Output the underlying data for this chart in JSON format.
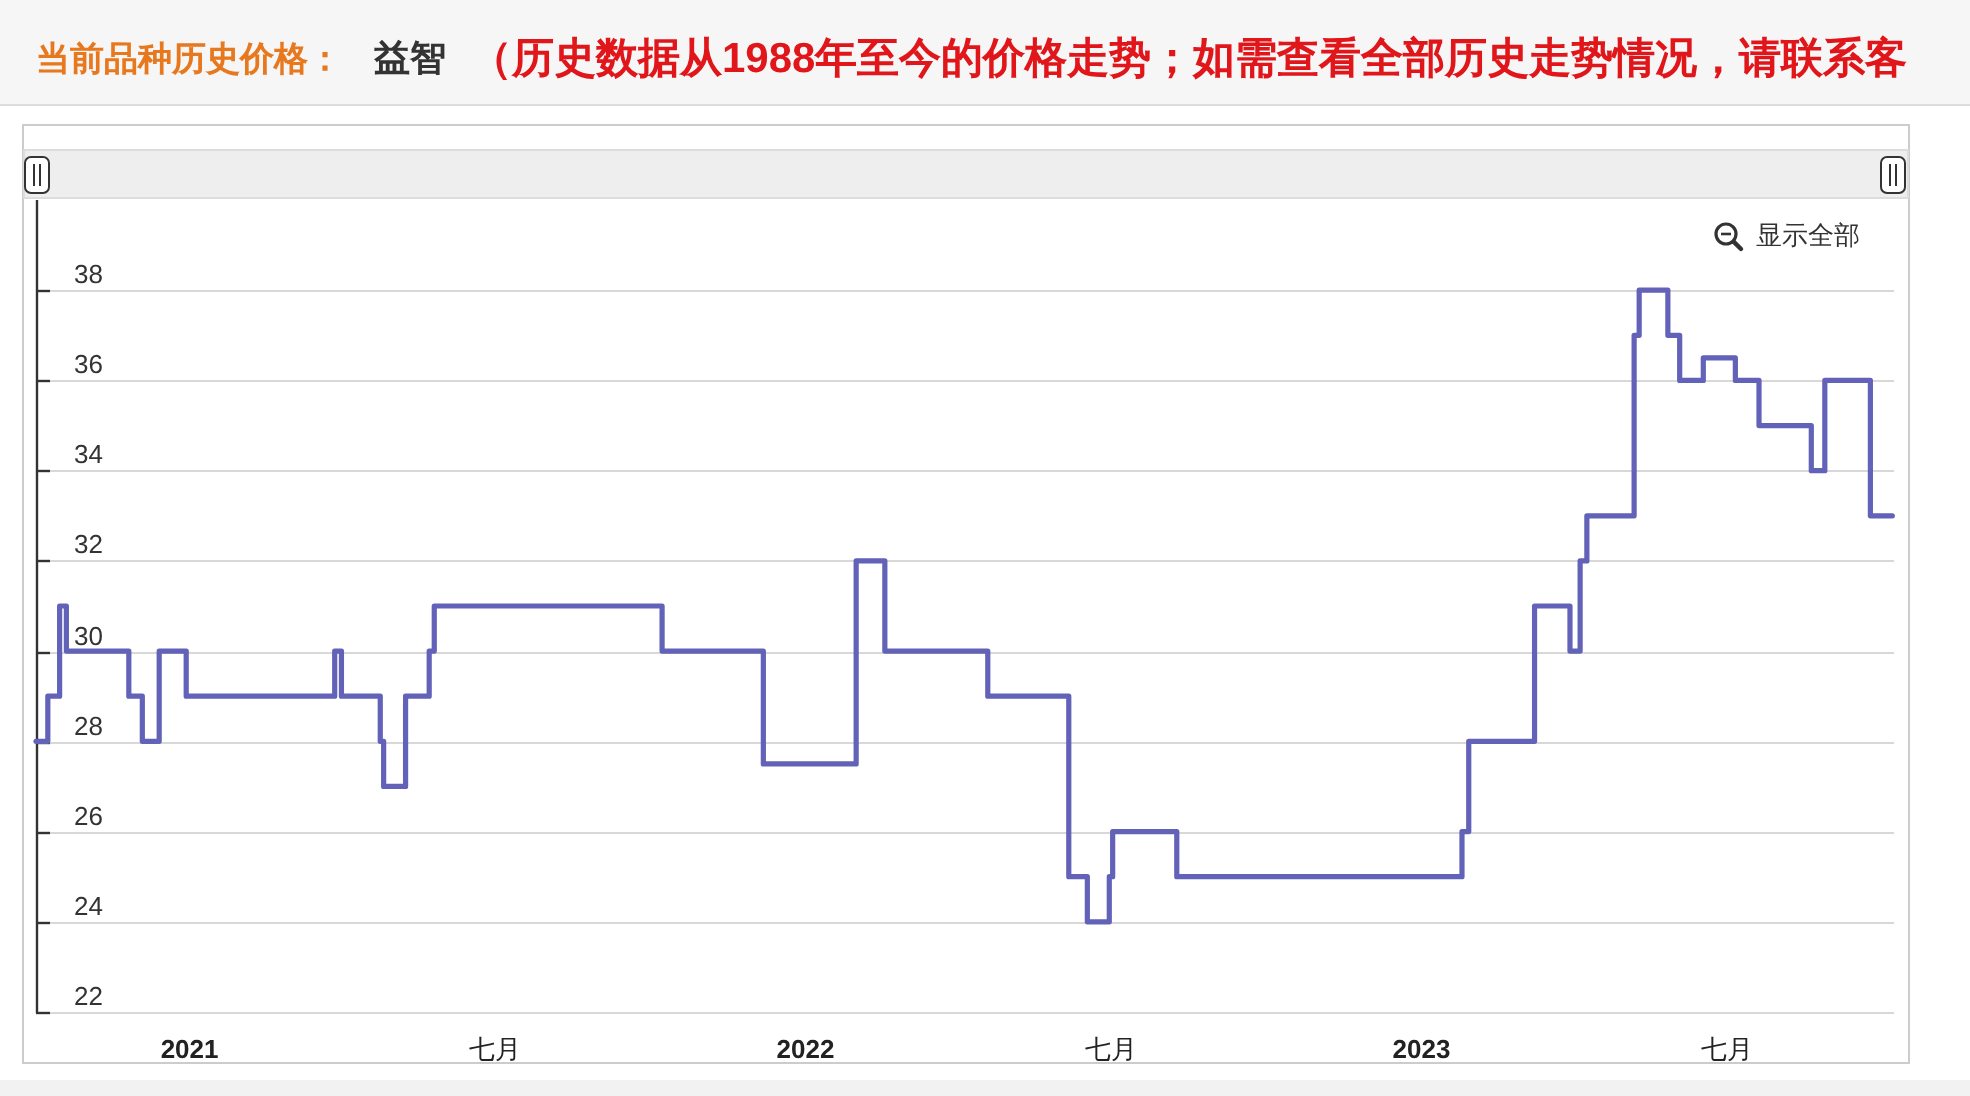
{
  "chart_data": {
    "type": "step",
    "title": "当前品种历史价格：",
    "subtitle": "益智",
    "annotations": [
      "（历史数据从1988年至今的价格走势；如需查看全部历史走势情况，请联系客",
      "显示全部"
    ],
    "x": [
      "2020-10-02",
      "2020-10-09",
      "2020-10-16",
      "2020-10-20",
      "2020-11-26",
      "2020-12-04",
      "2020-12-14",
      "2020-12-30",
      "2021-03-28",
      "2021-04-01",
      "2021-04-24",
      "2021-04-26",
      "2021-05-09",
      "2021-05-23",
      "2021-05-26",
      "2021-10-08",
      "2021-12-07",
      "2022-01-31",
      "2022-02-17",
      "2022-04-19",
      "2022-06-06",
      "2022-06-17",
      "2022-06-30",
      "2022-07-02",
      "2022-08-09",
      "2023-01-25",
      "2023-01-29",
      "2023-03-09",
      "2023-03-30",
      "2023-04-05",
      "2023-04-09",
      "2023-05-07",
      "2023-05-10",
      "2023-05-27",
      "2023-06-03",
      "2023-06-17",
      "2023-07-06",
      "2023-07-20",
      "2023-08-20",
      "2023-08-28",
      "2023-09-24",
      "2023-10-07"
    ],
    "series": [
      {
        "color": "#6262b8",
        "values": [
          28,
          29,
          31,
          30,
          29,
          28,
          30,
          29,
          30,
          29,
          28,
          27,
          29,
          30,
          31,
          30,
          27.5,
          32,
          30,
          29,
          25,
          24,
          25,
          26,
          25,
          26,
          28,
          31,
          30,
          32,
          33,
          37,
          38,
          37,
          36,
          36.5,
          36,
          35,
          34,
          36,
          33,
          33
        ]
      }
    ],
    "xlim": [
      "2020-10-02",
      "2023-10-08"
    ],
    "xticks": [
      {
        "value": "2021-01-01",
        "label": "2021"
      },
      {
        "value": "2021-07-01",
        "label": "七月"
      },
      {
        "value": "2022-01-01",
        "label": "2022"
      },
      {
        "value": "2022-07-01",
        "label": "七月"
      },
      {
        "value": "2023-01-01",
        "label": "2023"
      },
      {
        "value": "2023-07-01",
        "label": "七月"
      }
    ],
    "ylim": [
      22,
      40
    ],
    "yticks": [
      22,
      24,
      26,
      28,
      30,
      32,
      34,
      36,
      38
    ],
    "grid": "y",
    "line_style": "solid"
  }
}
